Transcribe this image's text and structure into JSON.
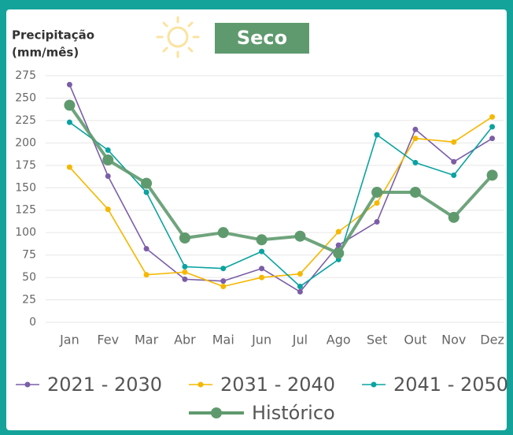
{
  "chart_data": {
    "type": "line",
    "y_label": [
      "Precipitação",
      "(mm/mês)"
    ],
    "badge": "Seco",
    "categories": [
      "Jan",
      "Fev",
      "Mar",
      "Abr",
      "Mai",
      "Jun",
      "Jul",
      "Ago",
      "Set",
      "Out",
      "Nov",
      "Dez"
    ],
    "series": [
      {
        "name": "2021 - 2030",
        "color": "#7b5ea7",
        "values": [
          265,
          163,
          82,
          48,
          46,
          60,
          34,
          86,
          112,
          215,
          179,
          205
        ]
      },
      {
        "name": "2031 - 2040",
        "color": "#f5b800",
        "values": [
          173,
          126,
          53,
          56,
          40,
          50,
          54,
          101,
          133,
          205,
          201,
          229
        ]
      },
      {
        "name": "2041 - 2050",
        "color": "#0aa3a0",
        "values": [
          223,
          192,
          145,
          62,
          60,
          79,
          40,
          70,
          209,
          178,
          164,
          218
        ]
      },
      {
        "name": "Histórico",
        "color": "#5f9a6e",
        "values": [
          242,
          181,
          155,
          94,
          100,
          92,
          96,
          77,
          145,
          145,
          117,
          164
        ]
      }
    ],
    "ylim": [
      0,
      275
    ],
    "yticks": [
      0,
      25,
      50,
      75,
      100,
      125,
      150,
      175,
      200,
      225,
      250,
      275
    ],
    "grid": true
  }
}
